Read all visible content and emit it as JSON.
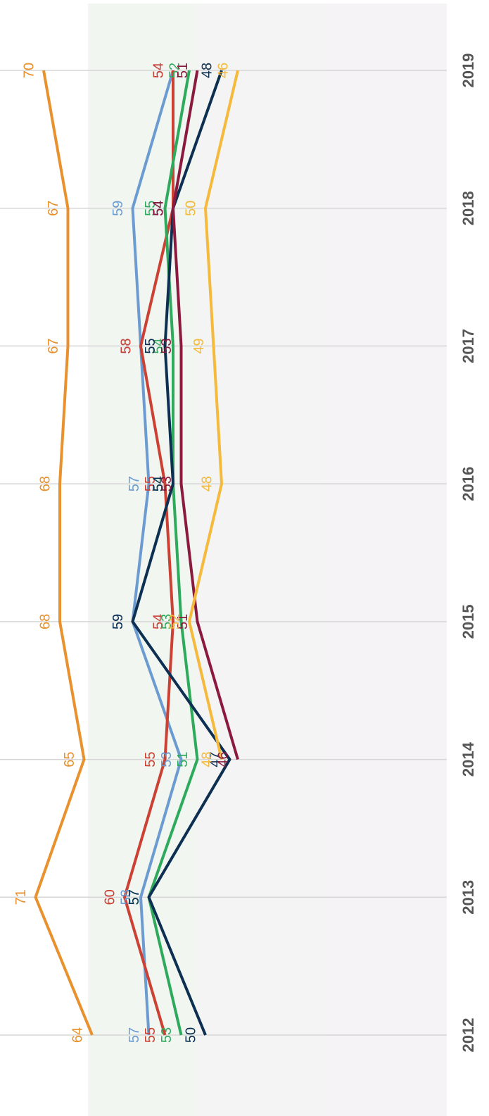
{
  "chart_data": {
    "type": "line",
    "categories": [
      "2012",
      "2013",
      "2014",
      "2015",
      "2016",
      "2017",
      "2018",
      "2019"
    ],
    "series": [
      {
        "color": "#e8912d",
        "values": [
          64,
          71,
          65,
          68,
          68,
          67,
          67,
          70
        ]
      },
      {
        "color": "#6c9bd2",
        "values": [
          57,
          58,
          53,
          59,
          57,
          58,
          59,
          54
        ]
      },
      {
        "color": "#cc4133",
        "values": [
          55,
          60,
          55,
          54,
          55,
          58,
          54,
          54
        ]
      },
      {
        "color": "#2eaa5c",
        "values": [
          53,
          57,
          51,
          53,
          54,
          54,
          55,
          52
        ]
      },
      {
        "color": "#0d2f52",
        "values": [
          50,
          57,
          47,
          59,
          54,
          55,
          54,
          48
        ]
      },
      {
        "color": "#8b1a3e",
        "values": [
          null,
          null,
          46,
          51,
          53,
          53,
          54,
          51
        ]
      },
      {
        "color": "#f5b93b",
        "values": [
          null,
          null,
          48,
          52,
          48,
          49,
          50,
          46
        ]
      }
    ],
    "ylim": [
      20,
      75
    ],
    "grid": true
  }
}
